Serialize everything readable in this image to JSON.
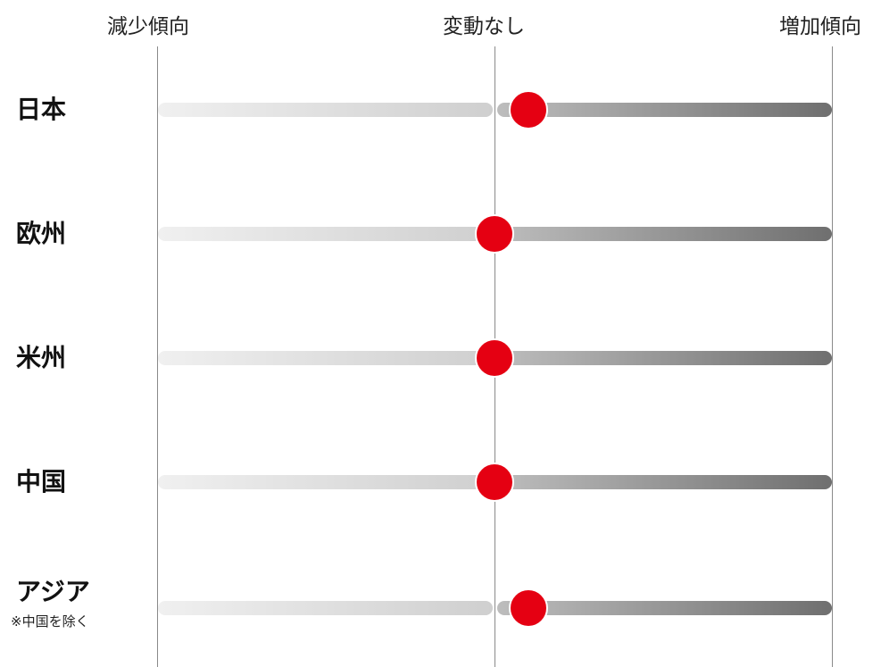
{
  "chart_data": {
    "type": "scatter",
    "scale_labels": [
      "減少傾向",
      "変動なし",
      "増加傾向"
    ],
    "xlim": [
      -1,
      1
    ],
    "rows": [
      {
        "label": "日本",
        "note": "",
        "value": 0.1
      },
      {
        "label": "欧州",
        "note": "",
        "value": 0.0
      },
      {
        "label": "米州",
        "note": "",
        "value": 0.0
      },
      {
        "label": "中国",
        "note": "",
        "value": 0.0
      },
      {
        "label": "アジア",
        "note": "※中国を除く",
        "value": 0.1
      }
    ],
    "marker_color": "#e50012"
  }
}
